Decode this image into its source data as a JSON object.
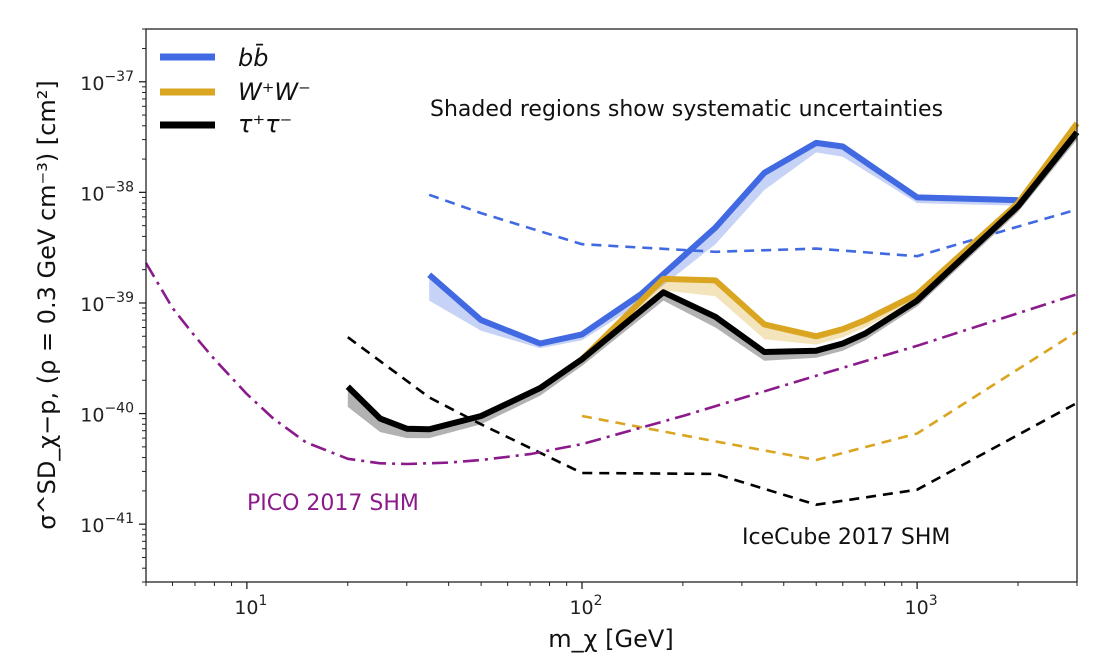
{
  "chart_data": {
    "type": "line",
    "xscale": "log",
    "yscale": "log",
    "xlim": [
      5,
      3000
    ],
    "ylim": [
      3e-42,
      3e-37
    ],
    "xlabel": "m_χ [GeV]",
    "ylabel": "σ^SD_χ−p, (ρ = 0.3 GeV cm⁻³) [cm²]",
    "x_ticks": [
      {
        "value": 10,
        "base": "10",
        "exp": "1"
      },
      {
        "value": 100,
        "base": "10",
        "exp": "2"
      },
      {
        "value": 1000,
        "base": "10",
        "exp": "3"
      }
    ],
    "y_ticks": [
      {
        "value": 1e-41,
        "base": "10",
        "exp": "−41"
      },
      {
        "value": 1e-40,
        "base": "10",
        "exp": "−40"
      },
      {
        "value": 1e-39,
        "base": "10",
        "exp": "−39"
      },
      {
        "value": 1e-38,
        "base": "10",
        "exp": "−38"
      },
      {
        "value": 1e-37,
        "base": "10",
        "exp": "−37"
      }
    ],
    "annotation": "Shaded regions show systematic uncertainties",
    "legend": [
      {
        "id": "bb",
        "label": "bb̄",
        "color": "#4169e1"
      },
      {
        "id": "ww",
        "label": "W⁺W⁻",
        "color": "#daa520"
      },
      {
        "id": "tau",
        "label": "τ⁺τ⁻",
        "color": "#000000"
      }
    ],
    "legend_position": "top-left",
    "series": [
      {
        "name": "bb-limit",
        "style": "solid",
        "color": "#4169e1",
        "x": [
          35,
          50,
          75,
          100,
          150,
          250,
          350,
          500,
          600,
          1000,
          2000
        ],
        "y": [
          1.8e-39,
          7e-40,
          4.3e-40,
          5.2e-40,
          1.2e-39,
          4.8e-39,
          1.5e-38,
          2.8e-38,
          2.6e-38,
          9e-39,
          8.5e-39
        ],
        "band_low": [
          1.05e-39,
          5.6e-40,
          3.9e-40,
          4.6e-40,
          1e-39,
          3.4e-39,
          1.05e-38,
          2.3e-38,
          2.1e-38,
          8e-39,
          7.6e-39
        ]
      },
      {
        "name": "ww-limit",
        "style": "solid",
        "color": "#daa520",
        "x": [
          100,
          175,
          250,
          350,
          500,
          600,
          700,
          1000,
          2000,
          3000
        ],
        "y": [
          3.1e-40,
          1.65e-39,
          1.6e-39,
          6.4e-40,
          5e-40,
          5.8e-40,
          7e-40,
          1.2e-39,
          8e-39,
          4.2e-38
        ],
        "band_low": [
          2.8e-40,
          1.3e-39,
          1.15e-39,
          4.7e-40,
          4.2e-40,
          4.9e-40,
          6e-40,
          1.05e-39,
          6.8e-39,
          3.3e-38
        ]
      },
      {
        "name": "tau-limit",
        "style": "solid",
        "color": "#000000",
        "x": [
          20,
          25,
          30,
          35,
          50,
          75,
          100,
          175,
          250,
          350,
          500,
          600,
          700,
          1000,
          2000,
          3000
        ],
        "y": [
          1.75e-40,
          9e-41,
          7.3e-41,
          7.2e-41,
          9.5e-41,
          1.7e-40,
          3.1e-40,
          1.25e-39,
          7.5e-40,
          3.6e-40,
          3.7e-40,
          4.3e-40,
          5.3e-40,
          1.05e-39,
          7.5e-39,
          3.5e-38
        ],
        "band_low": [
          1.15e-40,
          6.8e-41,
          6e-41,
          6e-41,
          8e-41,
          1.45e-40,
          2.7e-40,
          1.05e-39,
          6e-40,
          3e-40,
          3.2e-40,
          3.7e-40,
          4.6e-40,
          9.3e-40,
          6.6e-39,
          3e-38
        ]
      },
      {
        "name": "icecube-bb",
        "style": "dashed",
        "color": "#4169e1",
        "x": [
          35,
          50,
          100,
          250,
          500,
          1000,
          2000,
          3000
        ],
        "y": [
          9.5e-39,
          6.5e-39,
          3.4e-39,
          2.9e-39,
          3.1e-39,
          2.65e-39,
          4.9e-39,
          7e-39
        ]
      },
      {
        "name": "icecube-ww",
        "style": "dashed",
        "color": "#daa520",
        "x": [
          100,
          250,
          500,
          1000,
          3000
        ],
        "y": [
          9.5e-41,
          5.6e-41,
          3.8e-41,
          6.6e-41,
          5.5e-40
        ]
      },
      {
        "name": "icecube-tau",
        "style": "dashed",
        "color": "#000000",
        "x": [
          20,
          35,
          50,
          100,
          250,
          500,
          1000,
          3000
        ],
        "y": [
          4.9e-40,
          1.4e-40,
          8e-41,
          2.9e-41,
          2.85e-41,
          1.5e-41,
          2.05e-41,
          1.25e-40
        ]
      },
      {
        "name": "pico-2017",
        "style": "dashdot",
        "color": "#8b1a8b",
        "x": [
          5,
          6,
          7,
          8,
          10,
          12,
          15,
          20,
          25,
          30,
          40,
          50,
          70,
          100,
          200,
          500,
          1000,
          3000
        ],
        "y": [
          2.3e-39,
          9e-40,
          5e-40,
          3.1e-40,
          1.5e-40,
          9e-41,
          5.5e-41,
          3.9e-41,
          3.55e-41,
          3.5e-41,
          3.6e-41,
          3.8e-41,
          4.3e-41,
          5.3e-41,
          9.5e-41,
          2.2e-40,
          4.1e-40,
          1.2e-39
        ]
      }
    ],
    "labels": {
      "pico": "PICO 2017 SHM",
      "icecube": "IceCube 2017 SHM"
    }
  }
}
